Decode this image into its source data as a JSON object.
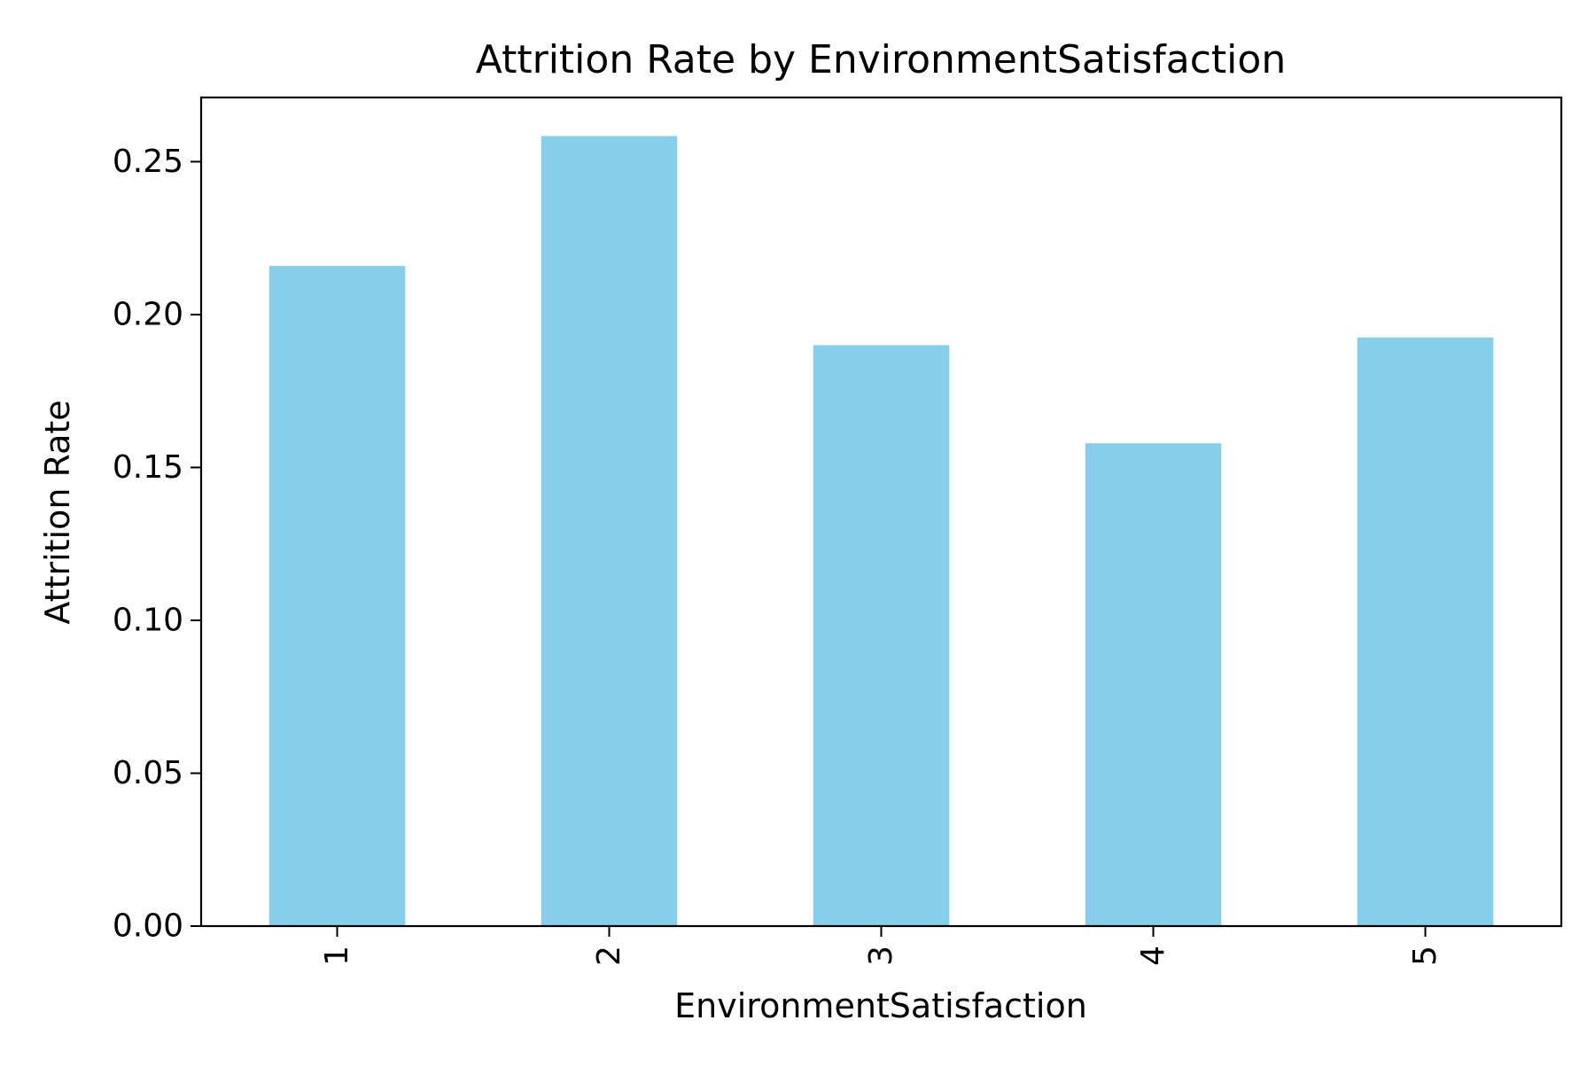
{
  "chart_data": {
    "type": "bar",
    "title": "Attrition Rate by EnvironmentSatisfaction",
    "xlabel": "EnvironmentSatisfaction",
    "ylabel": "Attrition Rate",
    "categories": [
      "1",
      "2",
      "3",
      "4",
      "5"
    ],
    "values": [
      0.2159,
      0.2584,
      0.19,
      0.1579,
      0.1925
    ],
    "ylim": [
      0,
      0.271
    ],
    "yticks": [
      0.0,
      0.05,
      0.1,
      0.15,
      0.2,
      0.25
    ],
    "ytick_labels": [
      "0.00",
      "0.05",
      "0.10",
      "0.15",
      "0.20",
      "0.25"
    ],
    "xtick_rotation": "vertical",
    "grid": false,
    "legend": "none",
    "bar_color": "#87CEEB"
  }
}
